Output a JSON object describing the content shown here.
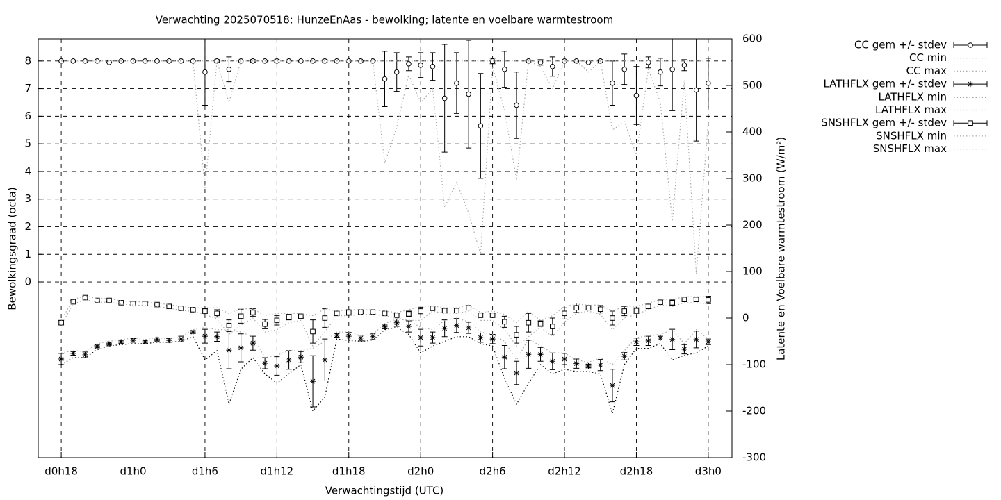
{
  "chart_data": {
    "type": "errorbar",
    "title": "Verwachting 2025070518: HunzeEnAas - bewolking; latente en voelbare warmtestroom",
    "xlabel": "Verwachtingstijd (UTC)",
    "ylabel": "Bewolkingsgraad (octa)",
    "y2label": "Latente en Voelbare warmtestroom (W/m²)",
    "grid": true,
    "legend": "outside-right",
    "x": [
      18,
      19,
      20,
      21,
      22,
      23,
      24,
      25,
      26,
      27,
      28,
      29,
      30,
      31,
      32,
      33,
      34,
      35,
      36,
      37,
      38,
      39,
      40,
      41,
      42,
      43,
      44,
      45,
      46,
      47,
      48,
      49,
      50,
      51,
      52,
      53,
      54,
      55,
      56,
      57,
      58,
      59,
      60,
      61,
      62,
      63,
      64,
      65,
      66,
      67,
      68,
      69,
      70,
      71,
      72
    ],
    "xlim": [
      16.08,
      73.98
    ],
    "xticks": [
      {
        "value": 18,
        "label": "d0h18"
      },
      {
        "value": 24,
        "label": "d1h0"
      },
      {
        "value": 30,
        "label": "d1h6"
      },
      {
        "value": 36,
        "label": "d1h12"
      },
      {
        "value": 42,
        "label": "d1h18"
      },
      {
        "value": 48,
        "label": "d2h0"
      },
      {
        "value": 54,
        "label": "d2h6"
      },
      {
        "value": 60,
        "label": "d2h12"
      },
      {
        "value": 66,
        "label": "d2h18"
      },
      {
        "value": 72,
        "label": "d3h0"
      }
    ],
    "ylim": [
      -6.36,
      8.8
    ],
    "yticks": [
      0,
      1,
      2,
      3,
      4,
      5,
      6,
      7,
      8
    ],
    "y2lim": [
      -300,
      600
    ],
    "y2ticks": [
      -300,
      -200,
      -100,
      0,
      100,
      200,
      300,
      400,
      500,
      600
    ],
    "series": [
      {
        "name": "CC gem +/- stdev",
        "style": "errorbars",
        "marker": "circle",
        "color": "#000000",
        "axis": "y",
        "values": [
          8,
          8,
          8,
          8,
          7.95,
          8,
          8,
          8,
          8,
          8,
          8,
          8,
          7.6,
          8,
          7.7,
          8,
          8,
          8,
          8,
          8,
          8,
          8,
          8,
          8,
          8,
          8,
          8,
          7.35,
          7.6,
          7.9,
          7.85,
          7.8,
          6.65,
          7.2,
          6.8,
          5.65,
          8,
          7.7,
          6.4,
          8,
          7.95,
          7.8,
          8,
          8,
          7.95,
          8,
          7.2,
          7.7,
          6.75,
          7.95,
          7.6,
          7.7,
          7.85,
          6.95,
          7.2
        ],
        "errors": [
          0,
          0,
          0,
          0,
          0,
          0,
          0,
          0,
          0,
          0,
          0,
          0,
          1.2,
          0.05,
          0.45,
          0,
          0.05,
          0,
          0.05,
          0,
          0,
          0,
          0.05,
          0,
          0,
          0,
          0,
          1.0,
          0.7,
          0.25,
          0.45,
          0.5,
          1.95,
          1.1,
          1.95,
          1.9,
          0.1,
          0.65,
          1.2,
          0,
          0.1,
          0.35,
          0,
          0,
          0,
          0.05,
          0.8,
          0.55,
          1.05,
          0.2,
          0.5,
          1.5,
          0.2,
          1.85,
          0.9
        ]
      },
      {
        "name": "CC min",
        "style": "dotted",
        "color": "#aaaaaa",
        "axis": "y",
        "values": [
          8,
          8,
          8,
          8,
          8,
          8,
          8,
          8,
          8,
          8,
          8,
          8,
          3.4,
          8,
          6.5,
          8,
          8,
          8,
          8,
          8,
          8,
          8,
          8,
          8,
          8,
          8,
          8,
          4.3,
          5.6,
          7.5,
          6.5,
          7,
          2.7,
          3.6,
          2.5,
          1.0,
          7.8,
          6.2,
          3.7,
          8,
          7.8,
          7,
          8,
          8,
          7.6,
          8,
          5.5,
          5.8,
          4.6,
          7.7,
          6.5,
          2.2,
          7.3,
          0.3,
          5.8
        ]
      },
      {
        "name": "CC max",
        "style": "dotted",
        "color": "#aaaaaa",
        "axis": "y",
        "values": [
          8,
          8,
          8,
          8,
          8,
          8,
          8,
          8,
          8,
          8,
          8,
          8,
          8,
          8,
          8,
          8,
          8,
          8,
          8,
          8,
          8,
          8,
          8,
          8,
          8,
          8,
          8,
          8,
          8,
          8,
          8,
          8,
          8,
          8,
          8,
          8,
          8,
          8,
          8,
          8,
          8,
          8,
          8,
          8,
          8,
          8,
          8,
          8,
          8,
          8,
          8,
          8,
          8,
          8,
          8
        ]
      },
      {
        "name": "LATHFLX gem +/- stdev",
        "style": "errorbars",
        "marker": "star",
        "color": "#000000",
        "axis": "y2",
        "values": [
          -88,
          -76,
          -79,
          -61,
          -55,
          -51,
          -48,
          -51,
          -46,
          -48,
          -45,
          -30,
          -39,
          -40,
          -69,
          -64,
          -54,
          -97,
          -103,
          -90,
          -84,
          -136,
          -90,
          -37,
          -39,
          -43,
          -40,
          -19,
          -10,
          -18,
          -42,
          -42,
          -22,
          -16,
          -21,
          -42,
          -45,
          -84,
          -118,
          -78,
          -78,
          -93,
          -88,
          -98,
          -103,
          -101,
          -145,
          -82,
          -51,
          -49,
          -43,
          -46,
          -67,
          -46,
          -51
        ],
        "errors": [
          12,
          4,
          6,
          3,
          3,
          3,
          4,
          3,
          3,
          4,
          6,
          3,
          15,
          10,
          40,
          30,
          15,
          12,
          20,
          20,
          12,
          55,
          45,
          4,
          8,
          6,
          6,
          4,
          8,
          12,
          18,
          12,
          18,
          15,
          12,
          10,
          10,
          25,
          25,
          30,
          15,
          18,
          12,
          10,
          4,
          12,
          35,
          8,
          8,
          10,
          4,
          22,
          10,
          18,
          6
        ]
      },
      {
        "name": "LATHFLX min",
        "style": "dotted",
        "color": "#000000",
        "axis": "y2",
        "values": [
          -100,
          -85,
          -85,
          -68,
          -60,
          -57,
          -55,
          -55,
          -52,
          -52,
          -50,
          -40,
          -90,
          -70,
          -185,
          -110,
          -85,
          -120,
          -140,
          -120,
          -100,
          -200,
          -170,
          -45,
          -48,
          -50,
          -48,
          -25,
          -20,
          -35,
          -75,
          -60,
          -50,
          -40,
          -40,
          -55,
          -60,
          -130,
          -185,
          -140,
          -100,
          -120,
          -110,
          -115,
          -115,
          -120,
          -205,
          -100,
          -65,
          -65,
          -55,
          -90,
          -80,
          -75,
          -60
        ]
      },
      {
        "name": "LATHFLX max",
        "style": "dotted",
        "color": "#aaaaaa",
        "axis": "y2",
        "values": [
          -75,
          -70,
          -72,
          -55,
          -50,
          -46,
          -43,
          -46,
          -42,
          -45,
          -40,
          -25,
          -20,
          -25,
          -25,
          -30,
          -40,
          -85,
          -80,
          -70,
          -70,
          -65,
          -50,
          -30,
          -30,
          -38,
          -35,
          -12,
          -2,
          -5,
          -20,
          -25,
          -5,
          0,
          -8,
          -30,
          -35,
          -50,
          -90,
          -45,
          -60,
          -75,
          -75,
          -90,
          -95,
          -85,
          -100,
          -70,
          -42,
          -38,
          -35,
          -25,
          -55,
          -25,
          -45
        ]
      },
      {
        "name": "SNSHFLX gem +/- stdev",
        "style": "errorbars",
        "marker": "square",
        "color": "#000000",
        "axis": "y2",
        "values": [
          -10,
          35,
          44,
          38,
          38,
          33,
          31,
          31,
          29,
          25,
          21,
          18,
          15,
          10,
          -16,
          4,
          12,
          -13,
          -5,
          2,
          4,
          -29,
          0,
          10,
          12,
          13,
          13,
          10,
          6,
          9,
          15,
          21,
          16,
          16,
          22,
          6,
          6,
          -8,
          -36,
          -10,
          -12,
          -18,
          10,
          22,
          22,
          19,
          0,
          15,
          16,
          25,
          34,
          33,
          40,
          40,
          39
        ],
        "errors": [
          5,
          3,
          3,
          3,
          3,
          3,
          3,
          3,
          3,
          3,
          3,
          3,
          5,
          8,
          12,
          15,
          8,
          10,
          10,
          6,
          4,
          25,
          20,
          4,
          6,
          4,
          4,
          4,
          4,
          6,
          8,
          4,
          4,
          4,
          4,
          4,
          4,
          12,
          18,
          20,
          6,
          18,
          12,
          10,
          4,
          8,
          15,
          10,
          6,
          4,
          4,
          6,
          4,
          4,
          8
        ]
      },
      {
        "name": "SNSHFLX min",
        "style": "dotted",
        "color": "#aaaaaa",
        "axis": "y2",
        "values": [
          -15,
          30,
          40,
          34,
          34,
          30,
          28,
          27,
          25,
          21,
          17,
          14,
          8,
          -2,
          -35,
          -15,
          0,
          -30,
          -25,
          -10,
          -5,
          -60,
          -30,
          5,
          5,
          8,
          8,
          5,
          0,
          -5,
          -5,
          15,
          10,
          10,
          15,
          -5,
          -5,
          -25,
          -60,
          -40,
          -20,
          -40,
          -8,
          10,
          15,
          8,
          -25,
          0,
          8,
          18,
          28,
          25,
          33,
          33,
          30
        ]
      },
      {
        "name": "SNSHFLX max",
        "style": "dotted",
        "color": "#aaaaaa",
        "axis": "y2",
        "values": [
          -5,
          40,
          48,
          42,
          42,
          37,
          35,
          35,
          32,
          29,
          25,
          22,
          22,
          22,
          10,
          20,
          20,
          5,
          10,
          10,
          10,
          5,
          20,
          15,
          18,
          18,
          18,
          15,
          12,
          18,
          25,
          26,
          22,
          22,
          28,
          12,
          15,
          8,
          -10,
          15,
          -5,
          5,
          25,
          30,
          28,
          28,
          15,
          25,
          25,
          32,
          40,
          40,
          46,
          46,
          46
        ]
      }
    ]
  }
}
